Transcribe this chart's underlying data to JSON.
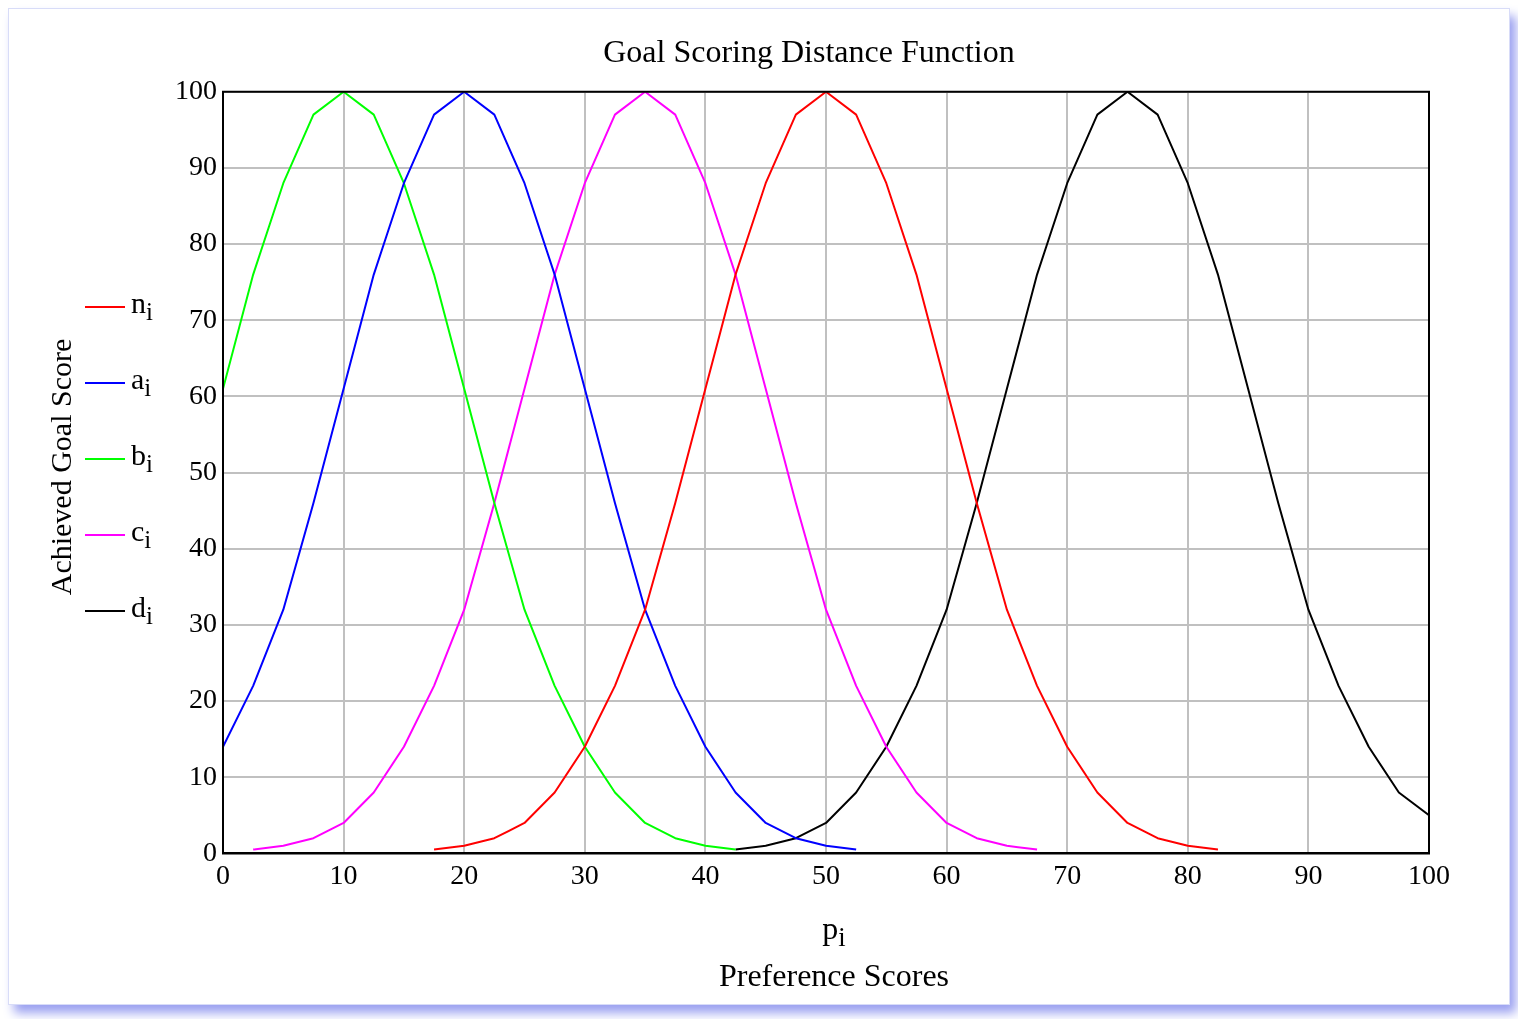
{
  "chart_data": {
    "type": "line",
    "title": "Goal Scoring Distance Function",
    "xlabel": "p$_{i}$\nPreference Scores",
    "ylabel": "Achieved Goal Score",
    "x": [
      0,
      2.5,
      5,
      7.5,
      10,
      12.5,
      15,
      17.5,
      20,
      22.5,
      25,
      27.5,
      30,
      32.5,
      35,
      37.5,
      40,
      42.5,
      45,
      47.5,
      50,
      52.5,
      55,
      57.5,
      60,
      62.5,
      65,
      67.5,
      70,
      72.5,
      75,
      77.5,
      80,
      82.5,
      85,
      87.5,
      90,
      92.5,
      95,
      97.5,
      100
    ],
    "series": [
      {
        "name": "n$_{i}$",
        "color": "#ff0000",
        "values": [
          null,
          null,
          null,
          null,
          null,
          null,
          null,
          0.5,
          1,
          2,
          4,
          8,
          14,
          22,
          32,
          46,
          61,
          76,
          88,
          97,
          100,
          97,
          88,
          76,
          61,
          46,
          32,
          22,
          14,
          8,
          4,
          2,
          1,
          0.5,
          null,
          null,
          null,
          null,
          null,
          null,
          null
        ]
      },
      {
        "name": "a$_{i}$",
        "color": "#0000ff",
        "values": [
          14,
          22,
          32,
          46,
          61,
          76,
          88,
          97,
          100,
          97,
          88,
          76,
          61,
          46,
          32,
          22,
          14,
          8,
          4,
          2,
          1,
          0.5,
          null,
          null,
          null,
          null,
          null,
          null,
          null,
          null,
          null,
          null,
          null,
          null,
          null,
          null,
          null,
          null,
          null,
          null,
          null
        ]
      },
      {
        "name": "b$_{i}$",
        "color": "#00ff00",
        "values": [
          61,
          76,
          88,
          97,
          100,
          97,
          88,
          76,
          61,
          46,
          32,
          22,
          14,
          8,
          4,
          2,
          1,
          0.5,
          null,
          null,
          null,
          null,
          null,
          null,
          null,
          null,
          null,
          null,
          null,
          null,
          null,
          null,
          null,
          null,
          null,
          null,
          null,
          null,
          null,
          null,
          null
        ]
      },
      {
        "name": "c$_{i}$",
        "color": "#ff00ff",
        "values": [
          null,
          0.5,
          1,
          2,
          4,
          8,
          14,
          22,
          32,
          46,
          61,
          76,
          88,
          97,
          100,
          97,
          88,
          76,
          61,
          46,
          32,
          22,
          14,
          8,
          4,
          2,
          1,
          0.5,
          null,
          null,
          null,
          null,
          null,
          null,
          null,
          null,
          null,
          null,
          null,
          null,
          null
        ]
      },
      {
        "name": "d$_{i}$",
        "color": "#000000",
        "values": [
          null,
          null,
          null,
          null,
          null,
          null,
          null,
          null,
          null,
          null,
          null,
          null,
          null,
          null,
          null,
          null,
          null,
          0.5,
          1,
          2,
          4,
          8,
          14,
          22,
          32,
          46,
          61,
          76,
          88,
          97,
          100,
          97,
          88,
          76,
          61,
          46,
          32,
          22,
          14,
          8,
          5
        ]
      }
    ],
    "xlim": [
      0,
      100
    ],
    "xticks": [
      0,
      10,
      20,
      30,
      40,
      50,
      60,
      70,
      80,
      90,
      100
    ],
    "ylim": [
      0,
      100
    ],
    "yticks": [
      0,
      10,
      20,
      30,
      40,
      50,
      60,
      70,
      80,
      90,
      100
    ],
    "grid": true,
    "legend": "left"
  }
}
